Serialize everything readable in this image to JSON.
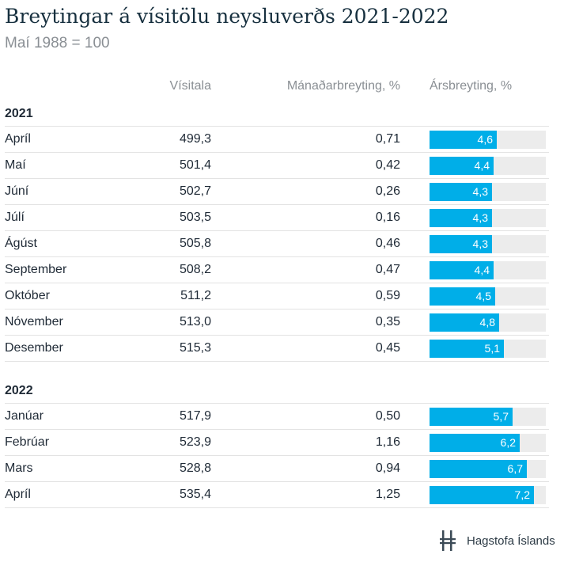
{
  "title": "Breytingar á vísitölu neysluverðs 2021-2022",
  "subtitle": "Maí 1988 = 100",
  "headers": {
    "index": "Vísitala",
    "monthly": "Mánaðarbreyting, %",
    "annual": "Ársbreyting, %"
  },
  "colors": {
    "bar": "#00aee8",
    "bar_track": "#ececec",
    "title": "#17303f"
  },
  "chart_data": {
    "type": "bar",
    "xlim": [
      0,
      8.0
    ],
    "groups": [
      {
        "year": "2021",
        "rows": [
          {
            "month": "Apríl",
            "index": "499,3",
            "monthly": "0,71",
            "annual": 4.6,
            "annual_label": "4,6"
          },
          {
            "month": "Maí",
            "index": "501,4",
            "monthly": "0,42",
            "annual": 4.4,
            "annual_label": "4,4"
          },
          {
            "month": "Júní",
            "index": "502,7",
            "monthly": "0,26",
            "annual": 4.3,
            "annual_label": "4,3"
          },
          {
            "month": "Júlí",
            "index": "503,5",
            "monthly": "0,16",
            "annual": 4.3,
            "annual_label": "4,3"
          },
          {
            "month": "Ágúst",
            "index": "505,8",
            "monthly": "0,46",
            "annual": 4.3,
            "annual_label": "4,3"
          },
          {
            "month": "September",
            "index": "508,2",
            "monthly": "0,47",
            "annual": 4.4,
            "annual_label": "4,4"
          },
          {
            "month": "Október",
            "index": "511,2",
            "monthly": "0,59",
            "annual": 4.5,
            "annual_label": "4,5"
          },
          {
            "month": "Nóvember",
            "index": "513,0",
            "monthly": "0,35",
            "annual": 4.8,
            "annual_label": "4,8"
          },
          {
            "month": "Desember",
            "index": "515,3",
            "monthly": "0,45",
            "annual": 5.1,
            "annual_label": "5,1"
          }
        ]
      },
      {
        "year": "2022",
        "rows": [
          {
            "month": "Janúar",
            "index": "517,9",
            "monthly": "0,50",
            "annual": 5.7,
            "annual_label": "5,7"
          },
          {
            "month": "Febrúar",
            "index": "523,9",
            "monthly": "1,16",
            "annual": 6.2,
            "annual_label": "6,2"
          },
          {
            "month": "Mars",
            "index": "528,8",
            "monthly": "0,94",
            "annual": 6.7,
            "annual_label": "6,7"
          },
          {
            "month": "Apríl",
            "index": "535,4",
            "monthly": "1,25",
            "annual": 7.2,
            "annual_label": "7,2"
          }
        ]
      }
    ]
  },
  "logo": {
    "icon": "hagstofa-logo-icon",
    "text": "Hagstofa Íslands"
  }
}
